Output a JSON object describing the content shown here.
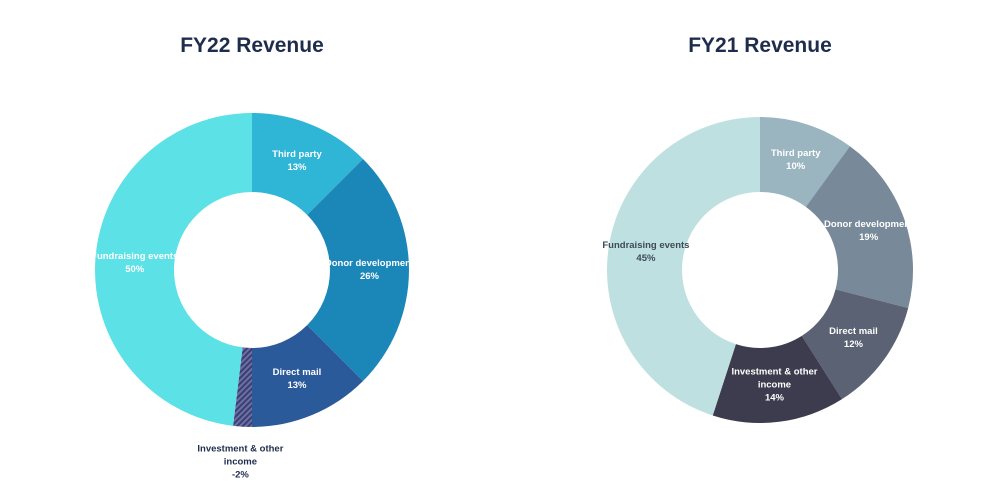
{
  "chart_data": [
    {
      "type": "donut",
      "title": "FY22 Revenue",
      "categories": [
        "Third party",
        "Donor development",
        "Direct mail",
        "Investment & other income",
        "Fundraising events"
      ],
      "values": [
        13,
        26,
        13,
        -2,
        50
      ],
      "value_labels": [
        "13%",
        "26%",
        "13%",
        "-2%",
        "50%"
      ],
      "colors": [
        "#2fb5d6",
        "#1a87b8",
        "#2a5a9a",
        "#3a3f6e",
        "#5ce1e6"
      ],
      "label_colors": [
        "#ffffff",
        "#ffffff",
        "#ffffff",
        "#1f2d4d",
        "#ffffff"
      ]
    },
    {
      "type": "donut",
      "title": "FY21 Revenue",
      "categories": [
        "Third party",
        "Donor development",
        "Direct mail",
        "Investment & other income",
        "Fundraising events"
      ],
      "values": [
        10,
        19,
        12,
        14,
        45
      ],
      "value_labels": [
        "10%",
        "19%",
        "12%",
        "14%",
        "45%"
      ],
      "colors": [
        "#9ab5c0",
        "#78899a",
        "#5a6273",
        "#3c3c4e",
        "#bfe0e0"
      ],
      "label_colors": [
        "#ffffff",
        "#ffffff",
        "#ffffff",
        "#ffffff",
        "#3c4a5a"
      ]
    }
  ]
}
